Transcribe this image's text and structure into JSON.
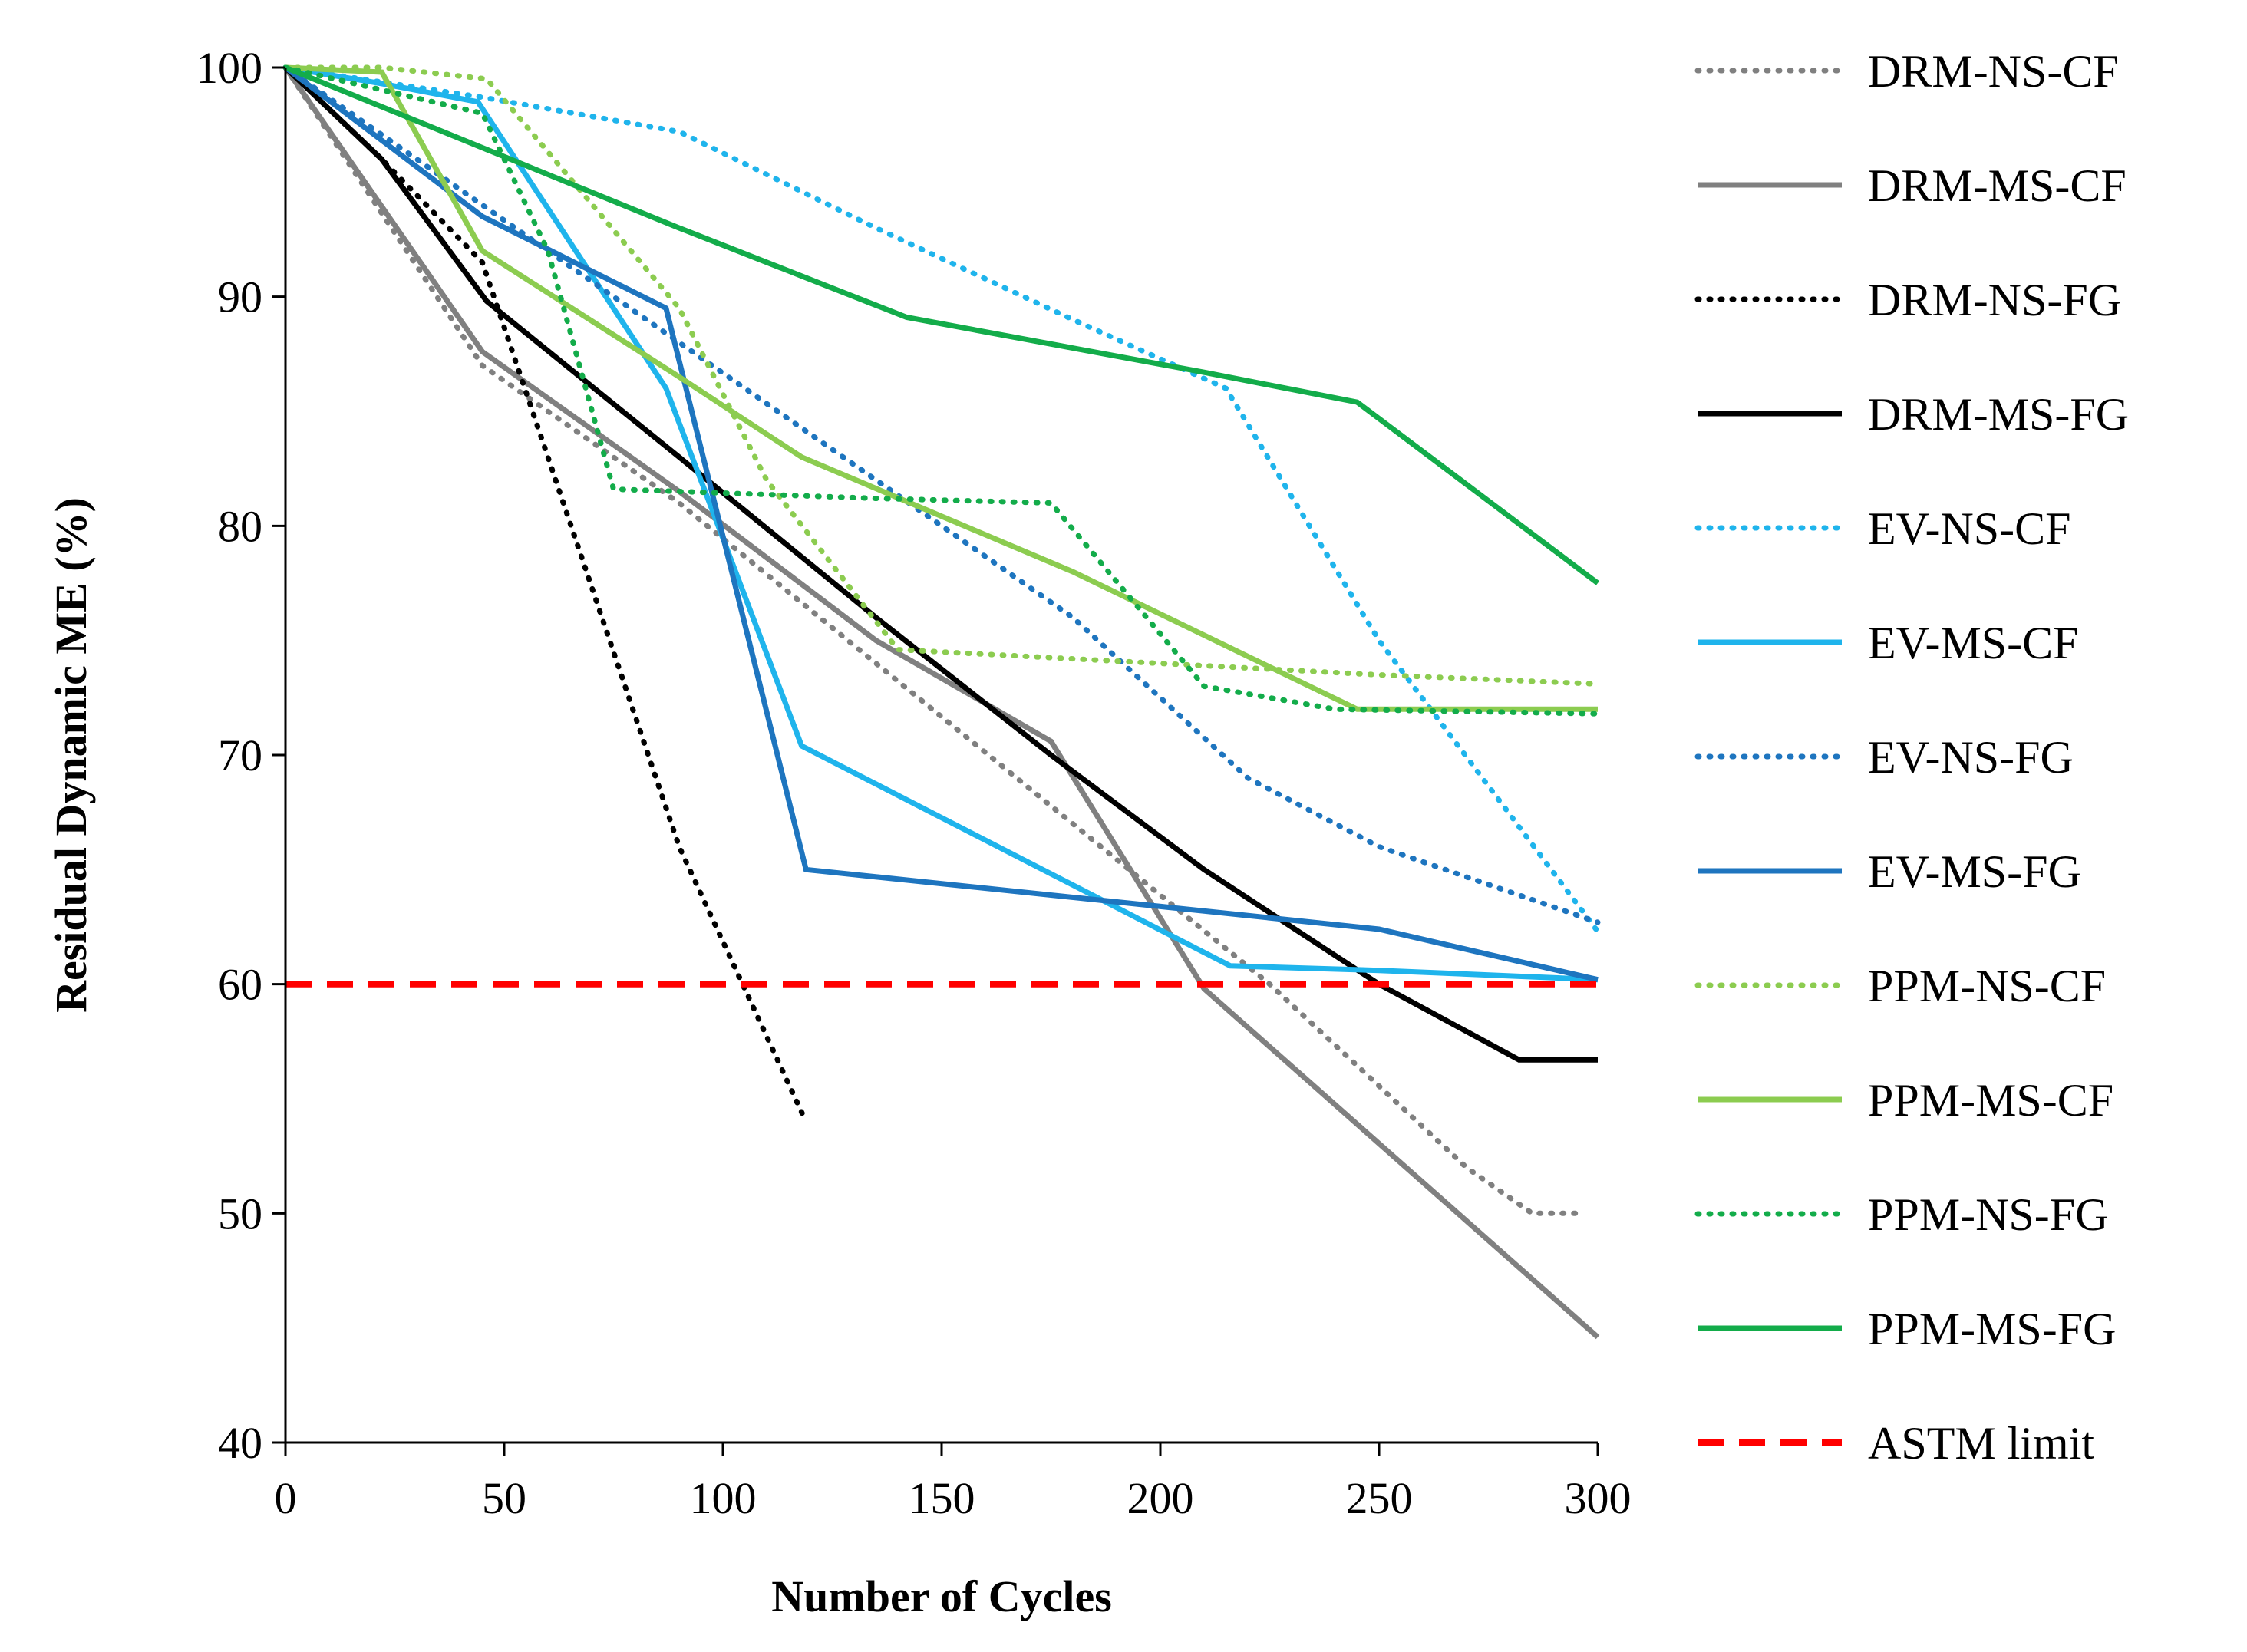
{
  "chart_data": {
    "type": "line",
    "title": "",
    "xlabel": "Number of Cycles",
    "ylabel": "Residual Dynamic ME (%)",
    "xlim": [
      0,
      300
    ],
    "ylim": [
      40,
      100
    ],
    "xticks": [
      0,
      50,
      100,
      150,
      200,
      250,
      300
    ],
    "yticks": [
      40,
      50,
      60,
      70,
      80,
      90,
      100
    ],
    "grid": false,
    "legend_position": "right",
    "series": [
      {
        "name": "DRM-NS-CF",
        "color": "#808080",
        "style": "dotted",
        "points": [
          [
            0,
            100
          ],
          [
            45,
            87
          ],
          [
            90,
            81
          ],
          [
            135,
            74
          ],
          [
            180,
            67
          ],
          [
            225,
            60
          ],
          [
            270,
            52
          ],
          [
            285,
            50
          ],
          [
            297,
            50
          ]
        ]
      },
      {
        "name": "DRM-MS-CF",
        "color": "#808080",
        "style": "solid",
        "points": [
          [
            0,
            100
          ],
          [
            45,
            87.6
          ],
          [
            90,
            81.5
          ],
          [
            135,
            75
          ],
          [
            175,
            70.6
          ],
          [
            210,
            59.8
          ],
          [
            300,
            44.6
          ]
        ]
      },
      {
        "name": "DRM-NS-FG",
        "color": "#000000",
        "style": "dotted",
        "points": [
          [
            0,
            100
          ],
          [
            22,
            96
          ],
          [
            45,
            91.5
          ],
          [
            90,
            66
          ],
          [
            119,
            54
          ]
        ]
      },
      {
        "name": "DRM-MS-FG",
        "color": "#000000",
        "style": "solid",
        "points": [
          [
            0,
            100
          ],
          [
            22,
            96
          ],
          [
            46,
            89.8
          ],
          [
            90,
            83
          ],
          [
            135,
            76
          ],
          [
            175,
            70
          ],
          [
            210,
            65
          ],
          [
            250,
            60
          ],
          [
            282,
            56.7
          ],
          [
            300,
            56.7
          ]
        ]
      },
      {
        "name": "EV-NS-CF",
        "color": "#1FB4EC",
        "style": "dotted",
        "points": [
          [
            0,
            100
          ],
          [
            45,
            98.7
          ],
          [
            90,
            97.2
          ],
          [
            135,
            93
          ],
          [
            180,
            89
          ],
          [
            215,
            86
          ],
          [
            250,
            75
          ],
          [
            300,
            62.3
          ]
        ]
      },
      {
        "name": "EV-MS-CF",
        "color": "#1FB4EC",
        "style": "solid",
        "points": [
          [
            0,
            100
          ],
          [
            22,
            99.3
          ],
          [
            44,
            98.5
          ],
          [
            87,
            86
          ],
          [
            118,
            70.4
          ],
          [
            216,
            60.8
          ],
          [
            250,
            60.6
          ],
          [
            300,
            60.2
          ]
        ]
      },
      {
        "name": "EV-NS-FG",
        "color": "#1E75BF",
        "style": "dotted",
        "points": [
          [
            0,
            100
          ],
          [
            45,
            94
          ],
          [
            90,
            88
          ],
          [
            135,
            82
          ],
          [
            180,
            76
          ],
          [
            220,
            69
          ],
          [
            250,
            66
          ],
          [
            300,
            62.7
          ]
        ]
      },
      {
        "name": "EV-MS-FG",
        "color": "#1E75BF",
        "style": "solid",
        "points": [
          [
            0,
            100
          ],
          [
            45,
            93.5
          ],
          [
            87,
            89.5
          ],
          [
            119,
            65
          ],
          [
            250,
            62.4
          ],
          [
            300,
            60.2
          ]
        ]
      },
      {
        "name": "PPM-NS-CF",
        "color": "#8CCC50",
        "style": "dotted",
        "points": [
          [
            0,
            100
          ],
          [
            22,
            100
          ],
          [
            46,
            99.5
          ],
          [
            90,
            89.5
          ],
          [
            110,
            82
          ],
          [
            140,
            74.6
          ],
          [
            180,
            74.2
          ],
          [
            250,
            73.5
          ],
          [
            300,
            73.1
          ]
        ]
      },
      {
        "name": "PPM-MS-CF",
        "color": "#8CCC50",
        "style": "solid",
        "points": [
          [
            0,
            100
          ],
          [
            22,
            99.8
          ],
          [
            45,
            92
          ],
          [
            90,
            86.5
          ],
          [
            118,
            83
          ],
          [
            180,
            78
          ],
          [
            245,
            72
          ],
          [
            300,
            72
          ]
        ]
      },
      {
        "name": "PPM-NS-FG",
        "color": "#13AC4A",
        "style": "dotted",
        "points": [
          [
            0,
            100
          ],
          [
            45,
            98
          ],
          [
            60,
            92
          ],
          [
            75,
            81.6
          ],
          [
            90,
            81.5
          ],
          [
            135,
            81.2
          ],
          [
            175,
            81
          ],
          [
            210,
            73
          ],
          [
            240,
            72
          ],
          [
            300,
            71.8
          ]
        ]
      },
      {
        "name": "PPM-MS-FG",
        "color": "#13AC4A",
        "style": "solid",
        "points": [
          [
            0,
            100
          ],
          [
            45,
            96.5
          ],
          [
            90,
            93
          ],
          [
            142,
            89.1
          ],
          [
            210,
            86.7
          ],
          [
            245,
            85.4
          ],
          [
            300,
            77.5
          ]
        ]
      },
      {
        "name": "ASTM limit",
        "color": "#FF0000",
        "style": "dashed",
        "points": [
          [
            0,
            60
          ],
          [
            300,
            60
          ]
        ]
      }
    ]
  }
}
